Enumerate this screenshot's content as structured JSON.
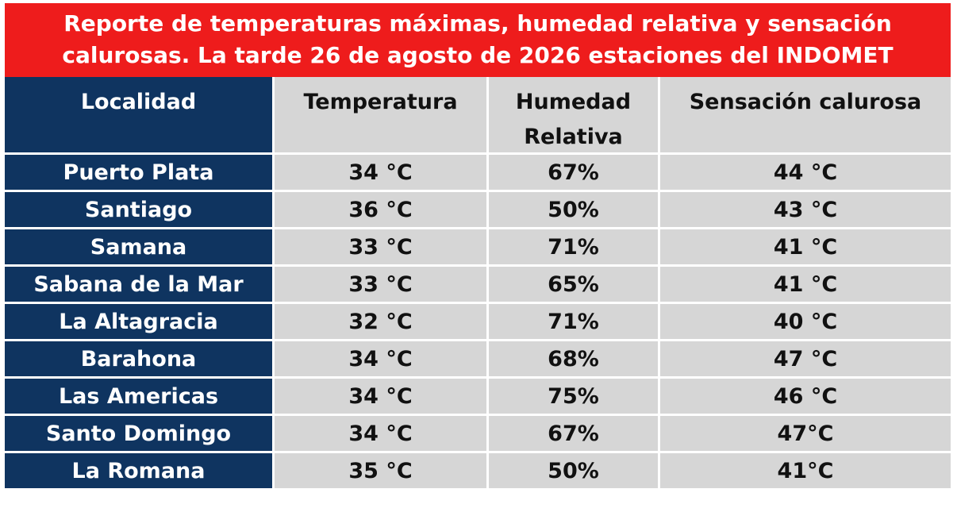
{
  "banner": {
    "line1": "Reporte de temperaturas máximas, humedad relativa y sensación",
    "line2": "calurosas. La tarde 26 de agosto de 2026  estaciones del INDOMET"
  },
  "table": {
    "headers": {
      "locality": "Localidad",
      "temperature": "Temperatura",
      "humidity_line1": "Humedad",
      "humidity_line2": "Relativa",
      "heat_index": "Sensación calurosa"
    },
    "rows": [
      {
        "locality": "Puerto Plata",
        "temperature": "34 °C",
        "humidity": "67%",
        "heat_index": "44 °C"
      },
      {
        "locality": "Santiago",
        "temperature": "36 °C",
        "humidity": "50%",
        "heat_index": "43 °C"
      },
      {
        "locality": "Samana",
        "temperature": "33 °C",
        "humidity": "71%",
        "heat_index": "41 °C"
      },
      {
        "locality": "Sabana de la Mar",
        "temperature": "33 °C",
        "humidity": "65%",
        "heat_index": "41 °C"
      },
      {
        "locality": "La Altagracia",
        "temperature": "32 °C",
        "humidity": "71%",
        "heat_index": "40 °C"
      },
      {
        "locality": "Barahona",
        "temperature": "34 °C",
        "humidity": "68%",
        "heat_index": "47 °C"
      },
      {
        "locality": "Las Americas",
        "temperature": "34 °C",
        "humidity": "75%",
        "heat_index": "46 °C"
      },
      {
        "locality": "Santo Domingo",
        "temperature": "34 °C",
        "humidity": "67%",
        "heat_index": "47°C"
      },
      {
        "locality": "La Romana",
        "temperature": "35 °C",
        "humidity": "50%",
        "heat_index": "41°C"
      }
    ]
  },
  "colors": {
    "banner_red": "#ee1c1c",
    "locality_navy": "#0f3460",
    "cell_gray": "#d6d6d6"
  }
}
